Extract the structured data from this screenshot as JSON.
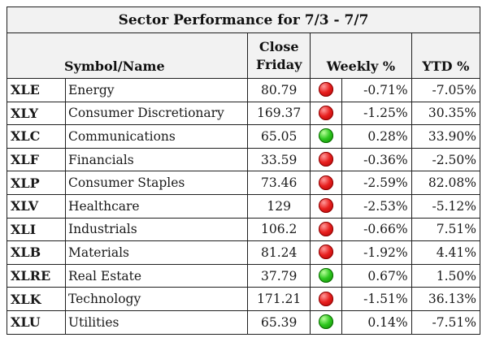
{
  "title": "Sector Performance for 7/3 - 7/7",
  "headers": {
    "symbol_name": "Symbol/Name",
    "close_line1": "Close",
    "close_line2": "Friday",
    "weekly": "Weekly %",
    "ytd": "YTD %"
  },
  "colors": {
    "negative": "#e03232",
    "positive": "#2e8b2e",
    "red_indicator": "#e8201f",
    "green_indicator": "#2ec81f"
  },
  "rows": [
    {
      "symbol": "XLE",
      "name": "Energy",
      "close": "80.79",
      "indicator": "red",
      "weekly": "-0.71%",
      "ytd": "-7.05%"
    },
    {
      "symbol": "XLY",
      "name": "Consumer Discretionary",
      "close": "169.37",
      "indicator": "red",
      "weekly": "-1.25%",
      "ytd": "30.35%"
    },
    {
      "symbol": "XLC",
      "name": "Communications",
      "close": "65.05",
      "indicator": "green",
      "weekly": "0.28%",
      "ytd": "33.90%"
    },
    {
      "symbol": "XLF",
      "name": "Financials",
      "close": "33.59",
      "indicator": "red",
      "weekly": "-0.36%",
      "ytd": "-2.50%"
    },
    {
      "symbol": "XLP",
      "name": "Consumer Staples",
      "close": "73.46",
      "indicator": "red",
      "weekly": "-2.59%",
      "ytd": "82.08%"
    },
    {
      "symbol": "XLV",
      "name": "Healthcare",
      "close": "129",
      "indicator": "red",
      "weekly": "-2.53%",
      "ytd": "-5.12%"
    },
    {
      "symbol": "XLI",
      "name": "Industrials",
      "close": "106.2",
      "indicator": "red",
      "weekly": "-0.66%",
      "ytd": "7.51%"
    },
    {
      "symbol": "XLB",
      "name": "Materials",
      "close": "81.24",
      "indicator": "red",
      "weekly": "-1.92%",
      "ytd": "4.41%"
    },
    {
      "symbol": "XLRE",
      "name": "Real Estate",
      "close": "37.79",
      "indicator": "green",
      "weekly": "0.67%",
      "ytd": "1.50%"
    },
    {
      "symbol": "XLK",
      "name": "Technology",
      "close": "171.21",
      "indicator": "red",
      "weekly": "-1.51%",
      "ytd": "36.13%"
    },
    {
      "symbol": "XLU",
      "name": "Utilities",
      "close": "65.39",
      "indicator": "green",
      "weekly": "0.14%",
      "ytd": "-7.51%"
    }
  ]
}
